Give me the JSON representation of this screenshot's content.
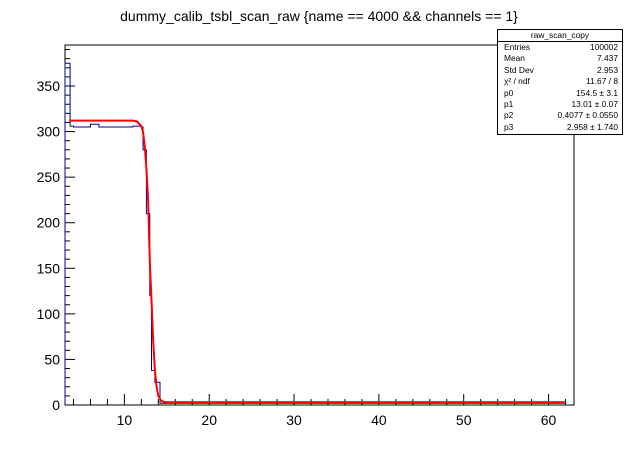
{
  "title": "dummy_calib_tsbl_scan_raw {name == 4000 && channels == 1}",
  "stats_box": {
    "title": "raw_scan_copy",
    "rows": [
      {
        "label": "Entries",
        "value": "100002"
      },
      {
        "label": "Mean",
        "value": "7.437"
      },
      {
        "label": "Std Dev",
        "value": "2.953"
      },
      {
        "label": "χ² / ndf",
        "value": "11.67 / 8"
      },
      {
        "label": "p0",
        "value": "154.5 ± 3.1"
      },
      {
        "label": "p1",
        "value": "13.01 ± 0.07"
      },
      {
        "label": "p2",
        "value": "0.4077 ± 0.0550"
      },
      {
        "label": "p3",
        "value": "2.958 ± 1.740"
      }
    ]
  },
  "colors": {
    "histogram": "#000099",
    "fit": "#ff0000",
    "axis": "#000000"
  },
  "chart_data": {
    "type": "line",
    "title": "dummy_calib_tsbl_scan_raw {name == 4000 && channels == 1}",
    "xlim": [
      3,
      63
    ],
    "ylim": [
      0,
      395
    ],
    "x_ticks": [
      10,
      20,
      30,
      40,
      50,
      60
    ],
    "y_ticks": [
      0,
      50,
      100,
      150,
      200,
      250,
      300,
      350
    ],
    "grid": false,
    "legend": "top-right",
    "series": [
      {
        "name": "raw_scan_copy",
        "style": "step",
        "bin_edges": [
          3,
          3.6,
          4,
          5,
          6,
          7,
          8,
          9,
          10,
          11,
          12,
          12.2,
          12.6,
          13,
          13.2,
          13.6,
          14.2,
          15,
          62
        ],
        "values": [
          375,
          306,
          305,
          305,
          308,
          305,
          305,
          305,
          305,
          306,
          305,
          280,
          210,
          120,
          38,
          25,
          2,
          2
        ]
      },
      {
        "name": "fit",
        "style": "line",
        "x": [
          3.5,
          6,
          8,
          10,
          11,
          11.5,
          12,
          12.2,
          12.4,
          12.6,
          12.8,
          13,
          13.2,
          13.4,
          13.6,
          13.8,
          14,
          14.3,
          14.6,
          15,
          20,
          30,
          40,
          50,
          62
        ],
        "values": [
          312,
          312,
          312,
          312,
          312,
          311,
          306,
          300,
          285,
          260,
          225,
          158,
          115,
          70,
          38,
          20,
          10,
          5,
          3.5,
          3,
          3,
          3,
          3,
          3,
          3
        ]
      }
    ]
  }
}
